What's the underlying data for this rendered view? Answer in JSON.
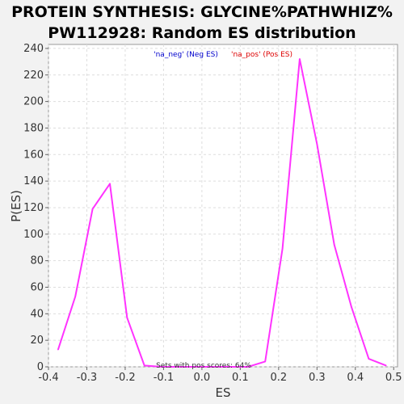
{
  "chart_data": {
    "type": "line",
    "title_line1": "PROTEIN SYNTHESIS: GLYCINE%PATHWHIZ%",
    "title_line2": "PW112928: Random ES distribution",
    "xlabel": "ES",
    "ylabel": "P(ES)",
    "xlim": [
      -0.4,
      0.51
    ],
    "ylim": [
      0,
      243
    ],
    "x_ticks": [
      "-0.4",
      "-0.3",
      "-0.2",
      "-0.1",
      "0.0",
      "0.1",
      "0.2",
      "0.3",
      "0.4",
      "0.5"
    ],
    "y_ticks": [
      "0",
      "20",
      "40",
      "60",
      "80",
      "100",
      "120",
      "140",
      "160",
      "180",
      "200",
      "220",
      "240"
    ],
    "grid": true,
    "legend": {
      "placement": "top-center",
      "neg_label": "'na_neg' (Neg ES)",
      "pos_label": "'na_pos' (Pos ES)",
      "neg_color": "#0000cc",
      "pos_color": "#dd0000"
    },
    "annotation": "Sets with pos scores: 64%",
    "series": [
      {
        "color": "#ff33ff",
        "x": [
          -0.375,
          -0.33,
          -0.285,
          -0.24,
          -0.195,
          -0.15,
          -0.105,
          -0.06,
          -0.015,
          0.03,
          0.075,
          0.12,
          0.165,
          0.21,
          0.255,
          0.3,
          0.345,
          0.39,
          0.435,
          0.48
        ],
        "y": [
          13,
          53,
          119,
          138,
          37,
          1,
          0,
          0,
          0,
          0,
          0,
          0,
          4,
          89,
          232,
          168,
          92,
          45,
          6,
          1
        ]
      }
    ]
  }
}
